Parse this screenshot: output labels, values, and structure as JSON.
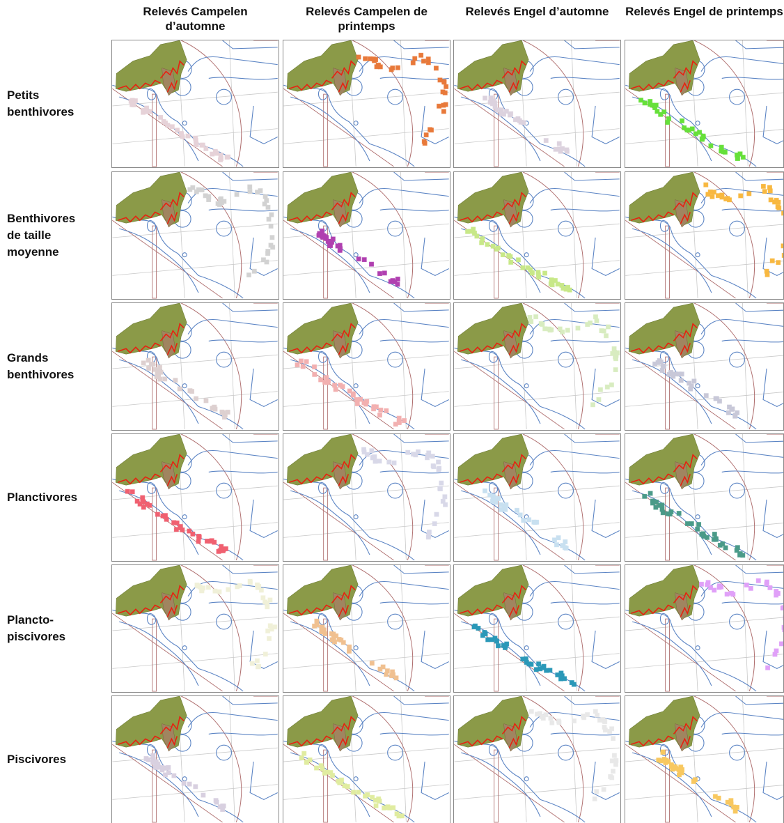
{
  "columns": [
    "Relevés Campelen d’automne",
    "Relevés Campelen de printemps",
    "Relevés Engel d’automne",
    "Relevés Engel de printemps"
  ],
  "rows": [
    {
      "label": "Petits\nbenthivores",
      "colors": [
        "#e6d2d8",
        "#e8793a",
        "#dcd2de",
        "#66e03a"
      ]
    },
    {
      "label": "Benthivores\nde taille\nmoyenne",
      "colors": [
        "#d2d2d2",
        "#b040b0",
        "#c8e888",
        "#f8b840"
      ]
    },
    {
      "label": "Grands\nbenthivores",
      "colors": [
        "#ddd0d0",
        "#f2b0b0",
        "#d8ecc0",
        "#c8c8d8"
      ]
    },
    {
      "label": "Planctivores",
      "colors": [
        "#f06070",
        "#d8d8e8",
        "#c8e0f0",
        "#4a9a88"
      ]
    },
    {
      "label": "Plancto-\npiscivores",
      "colors": [
        "#f0f0d8",
        "#f0c090",
        "#2a98b8",
        "#e0a0f8"
      ]
    },
    {
      "label": "Piscivores",
      "colors": [
        "#d8d0e0",
        "#e0eca0",
        "#e8e8e8",
        "#f8c860"
      ]
    }
  ]
}
